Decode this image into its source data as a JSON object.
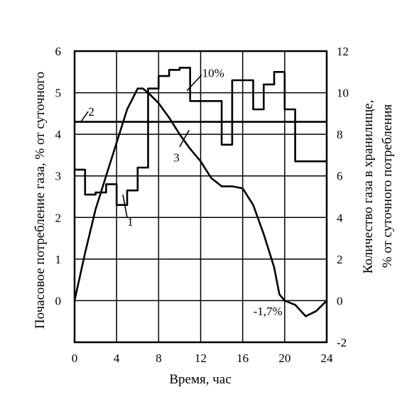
{
  "chart_data": {
    "type": "line",
    "xlabel": "Время, час",
    "ylabel_left": "Почасовое потребление газа, % от суточного",
    "ylabel_right_line1": "Количество газа в хранилище,",
    "ylabel_right_line2": "% от суточного потребления",
    "x_ticks": [
      "0",
      "4",
      "8",
      "12",
      "16",
      "20",
      "24"
    ],
    "y_left_ticks": [
      "6",
      "5",
      "4",
      "3",
      "2",
      "1",
      "0"
    ],
    "y_right_ticks": [
      "12",
      "10",
      "8",
      "6",
      "4",
      "2",
      "0",
      "-2"
    ],
    "xlim": [
      0,
      24
    ],
    "ylim_left": [
      -1,
      6
    ],
    "ylim_right": [
      -2,
      12
    ],
    "grid": true,
    "series": [
      {
        "name": "1",
        "axis": "left",
        "step": true,
        "x": [
          0,
          1,
          2,
          3,
          4,
          5,
          6,
          7,
          8,
          9,
          10,
          11,
          12,
          13,
          14,
          15,
          16,
          17,
          18,
          19,
          20,
          21,
          22,
          23,
          24
        ],
        "values": [
          3.15,
          2.55,
          2.6,
          2.8,
          2.3,
          2.65,
          3.2,
          5.1,
          5.4,
          5.55,
          5.6,
          4.8,
          4.8,
          4.8,
          3.75,
          5.3,
          5.3,
          4.6,
          5.2,
          5.5,
          4.6,
          3.35,
          3.35,
          3.35,
          3.35
        ]
      },
      {
        "name": "2",
        "axis": "left",
        "x": [
          0,
          24
        ],
        "values": [
          4.3,
          4.3
        ]
      },
      {
        "name": "3",
        "axis": "right",
        "x": [
          0,
          1,
          2,
          3,
          4,
          5,
          6,
          6.5,
          7,
          8,
          9,
          10,
          11,
          12,
          13,
          14,
          15,
          16,
          17,
          18,
          19,
          19.5,
          20,
          21,
          22,
          23,
          24
        ],
        "values": [
          0,
          2.3,
          4.4,
          6.0,
          7.6,
          9.2,
          10.2,
          10.2,
          10.0,
          9.5,
          8.8,
          8.0,
          7.3,
          6.7,
          5.9,
          5.5,
          5.5,
          5.4,
          4.6,
          3.2,
          1.6,
          0.3,
          0,
          -0.2,
          -0.75,
          -0.5,
          0
        ]
      }
    ],
    "annotations": [
      {
        "text": "1",
        "x": 5.3,
        "y": 1.9,
        "axis": "left"
      },
      {
        "text": "2",
        "x": 1.6,
        "y": 4.55,
        "axis": "left"
      },
      {
        "text": "3",
        "x": 9.7,
        "y": 3.45,
        "axis": "left"
      },
      {
        "text": "10%",
        "x": 13.2,
        "y": 5.48,
        "axis": "left"
      },
      {
        "text": "-1,7%",
        "x": 18.4,
        "y": -0.25,
        "axis": "left"
      }
    ]
  }
}
